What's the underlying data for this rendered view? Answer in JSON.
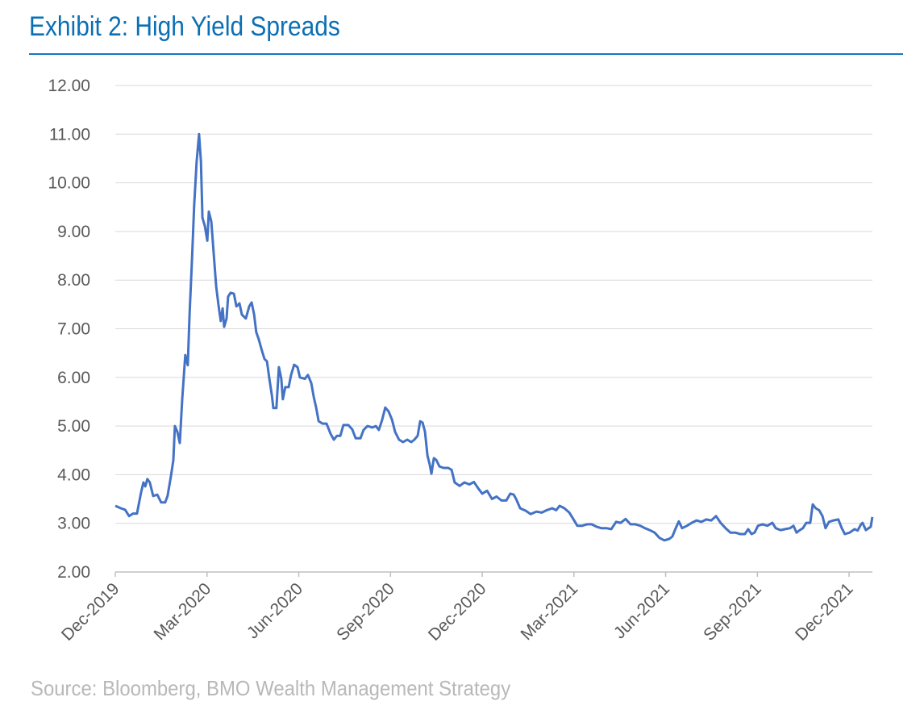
{
  "title": "Exhibit 2: High Yield Spreads",
  "source": "Source: Bloomberg, BMO Wealth Management Strategy",
  "colors": {
    "line": "#4472c4",
    "title": "#0a6fb5",
    "grid": "#d9d9d9",
    "axis_text": "#595959",
    "source": "#b8b8b8"
  },
  "chart_data": {
    "type": "line",
    "title": "Exhibit 2: High Yield Spreads",
    "xlabel": "",
    "ylabel": "",
    "ylim": [
      2,
      12
    ],
    "yticks": [
      "2.00",
      "3.00",
      "4.00",
      "5.00",
      "6.00",
      "7.00",
      "8.00",
      "9.00",
      "10.00",
      "11.00",
      "12.00"
    ],
    "x_unit": "months since Dec-2019",
    "xlim": [
      0,
      24.76
    ],
    "xticks": [
      {
        "m": 0,
        "label": "Dec-2019"
      },
      {
        "m": 3,
        "label": "Mar-2020"
      },
      {
        "m": 6,
        "label": "Jun-2020"
      },
      {
        "m": 9,
        "label": "Sep-2020"
      },
      {
        "m": 12,
        "label": "Dec-2020"
      },
      {
        "m": 15,
        "label": "Mar-2021"
      },
      {
        "m": 18,
        "label": "Jun-2021"
      },
      {
        "m": 21,
        "label": "Sep-2021"
      },
      {
        "m": 24,
        "label": "Dec-2021"
      }
    ],
    "grid": true,
    "legend": "none",
    "series": [
      {
        "name": "High Yield Spreads",
        "points": [
          [
            0,
            3.36
          ],
          [
            0.18,
            3.31
          ],
          [
            0.32,
            3.28
          ],
          [
            0.45,
            3.15
          ],
          [
            0.58,
            3.2
          ],
          [
            0.71,
            3.2
          ],
          [
            0.84,
            3.63
          ],
          [
            0.92,
            3.84
          ],
          [
            0.98,
            3.76
          ],
          [
            1.05,
            3.91
          ],
          [
            1.13,
            3.84
          ],
          [
            1.24,
            3.56
          ],
          [
            1.37,
            3.59
          ],
          [
            1.5,
            3.43
          ],
          [
            1.63,
            3.43
          ],
          [
            1.71,
            3.56
          ],
          [
            1.82,
            3.97
          ],
          [
            1.9,
            4.3
          ],
          [
            1.95,
            5.0
          ],
          [
            2.03,
            4.88
          ],
          [
            2.11,
            4.65
          ],
          [
            2.19,
            5.55
          ],
          [
            2.29,
            6.46
          ],
          [
            2.37,
            6.25
          ],
          [
            2.43,
            7.29
          ],
          [
            2.51,
            8.45
          ],
          [
            2.58,
            9.53
          ],
          [
            2.66,
            10.44
          ],
          [
            2.74,
            11.0
          ],
          [
            2.8,
            10.44
          ],
          [
            2.85,
            9.28
          ],
          [
            2.93,
            9.11
          ],
          [
            3.01,
            8.81
          ],
          [
            3.06,
            9.41
          ],
          [
            3.14,
            9.2
          ],
          [
            3.19,
            8.78
          ],
          [
            3.3,
            7.87
          ],
          [
            3.38,
            7.46
          ],
          [
            3.45,
            7.16
          ],
          [
            3.51,
            7.42
          ],
          [
            3.56,
            7.04
          ],
          [
            3.64,
            7.21
          ],
          [
            3.69,
            7.66
          ],
          [
            3.77,
            7.74
          ],
          [
            3.88,
            7.72
          ],
          [
            3.96,
            7.46
          ],
          [
            4.06,
            7.52
          ],
          [
            4.14,
            7.29
          ],
          [
            4.27,
            7.21
          ],
          [
            4.38,
            7.46
          ],
          [
            4.46,
            7.54
          ],
          [
            4.54,
            7.29
          ],
          [
            4.61,
            6.93
          ],
          [
            4.69,
            6.79
          ],
          [
            4.8,
            6.54
          ],
          [
            4.88,
            6.38
          ],
          [
            4.96,
            6.33
          ],
          [
            5.04,
            5.97
          ],
          [
            5.12,
            5.63
          ],
          [
            5.17,
            5.37
          ],
          [
            5.27,
            5.37
          ],
          [
            5.35,
            6.21
          ],
          [
            5.43,
            5.97
          ],
          [
            5.48,
            5.55
          ],
          [
            5.56,
            5.8
          ],
          [
            5.67,
            5.8
          ],
          [
            5.75,
            6.05
          ],
          [
            5.85,
            6.26
          ],
          [
            5.96,
            6.21
          ],
          [
            6.04,
            6.0
          ],
          [
            6.2,
            5.97
          ],
          [
            6.3,
            6.05
          ],
          [
            6.41,
            5.88
          ],
          [
            6.49,
            5.6
          ],
          [
            6.57,
            5.38
          ],
          [
            6.65,
            5.1
          ],
          [
            6.78,
            5.05
          ],
          [
            6.91,
            5.05
          ],
          [
            7.04,
            4.84
          ],
          [
            7.15,
            4.72
          ],
          [
            7.25,
            4.8
          ],
          [
            7.36,
            4.8
          ],
          [
            7.46,
            5.02
          ],
          [
            7.62,
            5.02
          ],
          [
            7.75,
            4.93
          ],
          [
            7.86,
            4.75
          ],
          [
            8.02,
            4.75
          ],
          [
            8.12,
            4.92
          ],
          [
            8.25,
            5.0
          ],
          [
            8.41,
            4.97
          ],
          [
            8.52,
            5.0
          ],
          [
            8.62,
            4.92
          ],
          [
            8.73,
            5.13
          ],
          [
            8.83,
            5.38
          ],
          [
            8.94,
            5.3
          ],
          [
            9.05,
            5.13
          ],
          [
            9.15,
            4.88
          ],
          [
            9.28,
            4.72
          ],
          [
            9.41,
            4.67
          ],
          [
            9.55,
            4.72
          ],
          [
            9.68,
            4.67
          ],
          [
            9.78,
            4.72
          ],
          [
            9.89,
            4.8
          ],
          [
            9.97,
            5.1
          ],
          [
            10.05,
            5.07
          ],
          [
            10.13,
            4.88
          ],
          [
            10.21,
            4.39
          ],
          [
            10.28,
            4.22
          ],
          [
            10.34,
            4.02
          ],
          [
            10.42,
            4.34
          ],
          [
            10.5,
            4.3
          ],
          [
            10.6,
            4.17
          ],
          [
            10.73,
            4.14
          ],
          [
            10.89,
            4.14
          ],
          [
            11.0,
            4.1
          ],
          [
            11.1,
            3.84
          ],
          [
            11.26,
            3.77
          ],
          [
            11.42,
            3.84
          ],
          [
            11.58,
            3.8
          ],
          [
            11.73,
            3.85
          ],
          [
            11.87,
            3.72
          ],
          [
            12.0,
            3.61
          ],
          [
            12.16,
            3.67
          ],
          [
            12.32,
            3.5
          ],
          [
            12.47,
            3.55
          ],
          [
            12.63,
            3.47
          ],
          [
            12.79,
            3.47
          ],
          [
            12.92,
            3.61
          ],
          [
            13.03,
            3.59
          ],
          [
            13.11,
            3.5
          ],
          [
            13.24,
            3.31
          ],
          [
            13.42,
            3.26
          ],
          [
            13.58,
            3.19
          ],
          [
            13.77,
            3.24
          ],
          [
            13.95,
            3.22
          ],
          [
            14.11,
            3.27
          ],
          [
            14.29,
            3.31
          ],
          [
            14.42,
            3.27
          ],
          [
            14.53,
            3.36
          ],
          [
            14.69,
            3.31
          ],
          [
            14.85,
            3.22
          ],
          [
            14.98,
            3.09
          ],
          [
            15.11,
            2.95
          ],
          [
            15.27,
            2.95
          ],
          [
            15.43,
            2.98
          ],
          [
            15.58,
            2.98
          ],
          [
            15.74,
            2.93
          ],
          [
            15.9,
            2.9
          ],
          [
            16.06,
            2.9
          ],
          [
            16.22,
            2.88
          ],
          [
            16.38,
            3.03
          ],
          [
            16.53,
            3.01
          ],
          [
            16.69,
            3.09
          ],
          [
            16.85,
            2.98
          ],
          [
            17.01,
            2.98
          ],
          [
            17.17,
            2.95
          ],
          [
            17.32,
            2.9
          ],
          [
            17.48,
            2.86
          ],
          [
            17.64,
            2.81
          ],
          [
            17.8,
            2.7
          ],
          [
            17.96,
            2.65
          ],
          [
            18.12,
            2.68
          ],
          [
            18.22,
            2.73
          ],
          [
            18.33,
            2.9
          ],
          [
            18.43,
            3.04
          ],
          [
            18.54,
            2.9
          ],
          [
            18.7,
            2.95
          ],
          [
            18.85,
            3.01
          ],
          [
            19.01,
            3.06
          ],
          [
            19.17,
            3.03
          ],
          [
            19.33,
            3.08
          ],
          [
            19.49,
            3.06
          ],
          [
            19.65,
            3.15
          ],
          [
            19.8,
            3.01
          ],
          [
            19.96,
            2.9
          ],
          [
            20.12,
            2.81
          ],
          [
            20.28,
            2.81
          ],
          [
            20.44,
            2.78
          ],
          [
            20.59,
            2.78
          ],
          [
            20.7,
            2.88
          ],
          [
            20.81,
            2.78
          ],
          [
            20.91,
            2.81
          ],
          [
            21.02,
            2.95
          ],
          [
            21.17,
            2.98
          ],
          [
            21.33,
            2.95
          ],
          [
            21.49,
            3.01
          ],
          [
            21.6,
            2.9
          ],
          [
            21.76,
            2.86
          ],
          [
            21.91,
            2.88
          ],
          [
            22.07,
            2.9
          ],
          [
            22.18,
            2.95
          ],
          [
            22.28,
            2.81
          ],
          [
            22.39,
            2.86
          ],
          [
            22.49,
            2.9
          ],
          [
            22.6,
            3.01
          ],
          [
            22.73,
            3.01
          ],
          [
            22.81,
            3.39
          ],
          [
            22.91,
            3.31
          ],
          [
            23.02,
            3.27
          ],
          [
            23.13,
            3.15
          ],
          [
            23.23,
            2.9
          ],
          [
            23.34,
            3.03
          ],
          [
            23.49,
            3.06
          ],
          [
            23.65,
            3.08
          ],
          [
            23.76,
            2.9
          ],
          [
            23.86,
            2.78
          ],
          [
            24.02,
            2.81
          ],
          [
            24.18,
            2.88
          ],
          [
            24.28,
            2.85
          ],
          [
            24.39,
            2.98
          ],
          [
            24.44,
            3.01
          ],
          [
            24.55,
            2.86
          ],
          [
            24.71,
            2.93
          ],
          [
            24.76,
            3.13
          ]
        ]
      }
    ]
  }
}
